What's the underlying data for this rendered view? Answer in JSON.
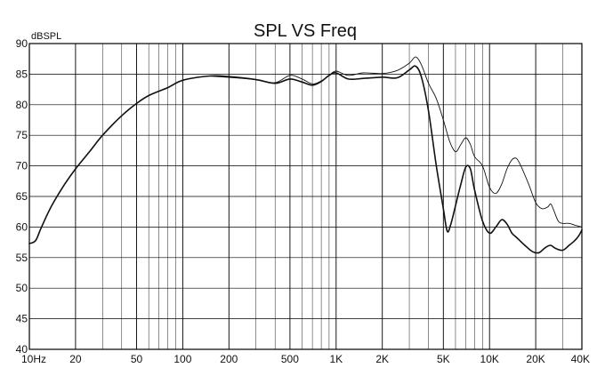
{
  "chart_data": {
    "type": "line",
    "title": "SPL VS Freq",
    "ylabel": "dBSPL",
    "xlabel": "",
    "x_scale": "log",
    "xlim": [
      10,
      40000
    ],
    "ylim": [
      40,
      90
    ],
    "grid": true,
    "x_tick_labels": [
      {
        "value": 10,
        "label": "10Hz"
      },
      {
        "value": 20,
        "label": "20"
      },
      {
        "value": 50,
        "label": "50"
      },
      {
        "value": 100,
        "label": "100"
      },
      {
        "value": 200,
        "label": "200"
      },
      {
        "value": 500,
        "label": "500"
      },
      {
        "value": 1000,
        "label": "1K"
      },
      {
        "value": 2000,
        "label": "2K"
      },
      {
        "value": 5000,
        "label": "5K"
      },
      {
        "value": 10000,
        "label": "10K"
      },
      {
        "value": 20000,
        "label": "20K"
      },
      {
        "value": 40000,
        "label": "40K"
      }
    ],
    "y_ticks": [
      40,
      45,
      50,
      55,
      60,
      65,
      70,
      75,
      80,
      85,
      90
    ],
    "series": [
      {
        "stroke_width": 1.6,
        "points": [
          [
            10,
            57.3
          ],
          [
            11,
            57.8
          ],
          [
            12,
            60
          ],
          [
            14,
            63.5
          ],
          [
            17,
            67
          ],
          [
            20,
            69.5
          ],
          [
            25,
            72.5
          ],
          [
            30,
            75
          ],
          [
            40,
            78.2
          ],
          [
            50,
            80.2
          ],
          [
            60,
            81.5
          ],
          [
            80,
            82.8
          ],
          [
            100,
            84
          ],
          [
            150,
            84.7
          ],
          [
            200,
            84.6
          ],
          [
            300,
            84.1
          ],
          [
            400,
            83.5
          ],
          [
            500,
            84.2
          ],
          [
            600,
            83.7
          ],
          [
            700,
            83.2
          ],
          [
            800,
            83.8
          ],
          [
            900,
            84.8
          ],
          [
            1000,
            85.2
          ],
          [
            1200,
            84.2
          ],
          [
            1500,
            84.3
          ],
          [
            2000,
            84.5
          ],
          [
            2500,
            84.4
          ],
          [
            3000,
            85.7
          ],
          [
            3300,
            86.3
          ],
          [
            3600,
            84.5
          ],
          [
            4000,
            79
          ],
          [
            4500,
            70
          ],
          [
            5000,
            63
          ],
          [
            5300,
            59.3
          ],
          [
            5600,
            60.5
          ],
          [
            6000,
            63.5
          ],
          [
            6500,
            67
          ],
          [
            7000,
            69.8
          ],
          [
            7500,
            69.5
          ],
          [
            8000,
            66
          ],
          [
            9000,
            61
          ],
          [
            10000,
            59
          ],
          [
            11000,
            60
          ],
          [
            12000,
            61.2
          ],
          [
            13000,
            60.5
          ],
          [
            14000,
            59
          ],
          [
            15000,
            58.3
          ],
          [
            17000,
            57
          ],
          [
            19000,
            56
          ],
          [
            21000,
            55.8
          ],
          [
            23000,
            56.6
          ],
          [
            25000,
            57
          ],
          [
            27000,
            56.5
          ],
          [
            30000,
            56.2
          ],
          [
            33000,
            57
          ],
          [
            36000,
            57.8
          ],
          [
            38000,
            58.5
          ],
          [
            40000,
            59.5
          ]
        ]
      },
      {
        "stroke_width": 0.9,
        "points": [
          [
            150,
            84.7
          ],
          [
            300,
            84.1
          ],
          [
            400,
            83.6
          ],
          [
            500,
            84.8
          ],
          [
            600,
            84.2
          ],
          [
            700,
            83.4
          ],
          [
            800,
            83.9
          ],
          [
            900,
            84.8
          ],
          [
            1000,
            85.5
          ],
          [
            1200,
            84.8
          ],
          [
            1500,
            85.2
          ],
          [
            2000,
            85.1
          ],
          [
            2500,
            85.6
          ],
          [
            3000,
            86.8
          ],
          [
            3300,
            87.8
          ],
          [
            3600,
            86.5
          ],
          [
            4000,
            83.5
          ],
          [
            4500,
            81
          ],
          [
            5000,
            77.5
          ],
          [
            5500,
            74
          ],
          [
            6000,
            72.3
          ],
          [
            6500,
            73.5
          ],
          [
            7000,
            74.6
          ],
          [
            7500,
            73.5
          ],
          [
            8000,
            71.5
          ],
          [
            9000,
            70
          ],
          [
            10000,
            66.5
          ],
          [
            11000,
            65.5
          ],
          [
            12000,
            67
          ],
          [
            13000,
            69.5
          ],
          [
            14000,
            71
          ],
          [
            15000,
            71.2
          ],
          [
            16000,
            70
          ],
          [
            18000,
            67
          ],
          [
            20000,
            64
          ],
          [
            22000,
            63
          ],
          [
            24000,
            63.3
          ],
          [
            25000,
            63.8
          ],
          [
            26000,
            63
          ],
          [
            28000,
            61
          ],
          [
            30000,
            60.6
          ],
          [
            33000,
            60.6
          ],
          [
            36000,
            60.3
          ],
          [
            40000,
            60
          ]
        ]
      }
    ]
  }
}
